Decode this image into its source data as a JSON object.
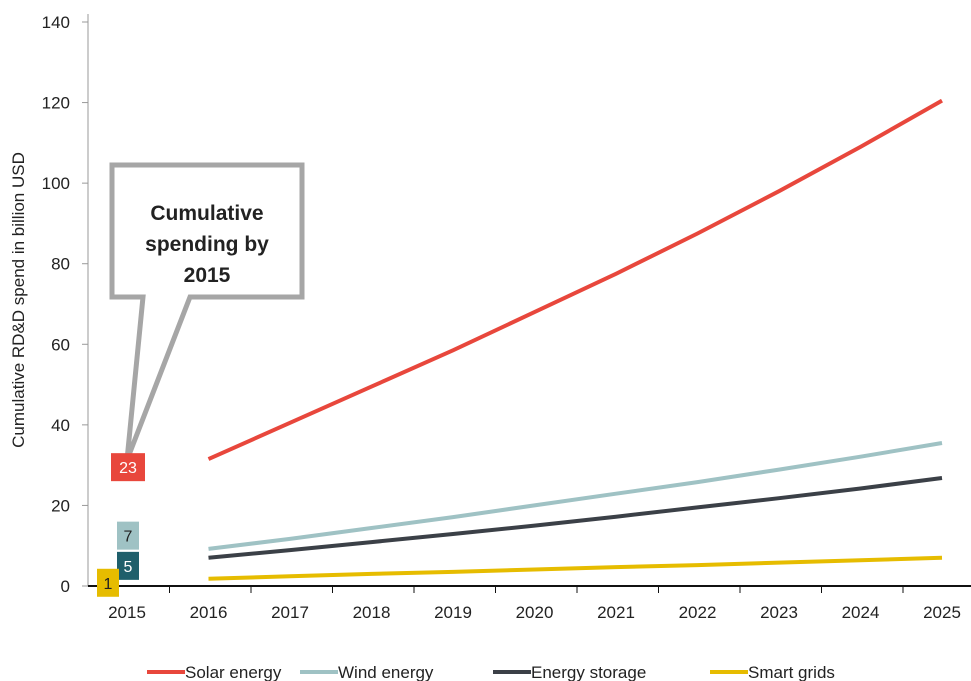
{
  "chart_data": {
    "type": "line",
    "ylabel": "Cumulative RD&D spend in billion USD",
    "xlabel": "",
    "ylim": [
      0,
      140
    ],
    "y_ticks": [
      "0",
      "20",
      "40",
      "60",
      "80",
      "100",
      "120",
      "140"
    ],
    "x_ticks": [
      "2015",
      "2016",
      "2017",
      "2018",
      "2019",
      "2020",
      "2021",
      "2022",
      "2023",
      "2024",
      "2025"
    ],
    "grid": false,
    "legend_position": "bottom",
    "series": [
      {
        "name": "Solar energy",
        "color": "#e8473c",
        "x": [
          2016,
          2017,
          2018,
          2019,
          2020,
          2021,
          2022,
          2023,
          2024,
          2025
        ],
        "values": [
          31.5,
          40.5,
          49.5,
          58.5,
          68,
          77.5,
          87.5,
          98,
          109,
          120.5
        ]
      },
      {
        "name": "Wind energy",
        "color": "#9fc2c4",
        "x": [
          2016,
          2017,
          2018,
          2019,
          2020,
          2021,
          2022,
          2023,
          2024,
          2025
        ],
        "values": [
          9.2,
          11.7,
          14.4,
          17.1,
          20,
          22.9,
          25.8,
          28.9,
          32.1,
          35.5
        ]
      },
      {
        "name": "Energy storage",
        "color": "#3b4047",
        "x": [
          2016,
          2017,
          2018,
          2019,
          2020,
          2021,
          2022,
          2023,
          2024,
          2025
        ],
        "values": [
          7,
          8.9,
          10.9,
          12.9,
          15,
          17.2,
          19.5,
          21.8,
          24.2,
          26.8
        ]
      },
      {
        "name": "Smart grids",
        "color": "#e6bc00",
        "x": [
          2016,
          2017,
          2018,
          2019,
          2020,
          2021,
          2022,
          2023,
          2024,
          2025
        ],
        "values": [
          1.8,
          2.4,
          3,
          3.5,
          4.1,
          4.7,
          5.2,
          5.8,
          6.4,
          7
        ]
      }
    ],
    "badges_2015": [
      {
        "series": "Solar energy",
        "label": "23",
        "value": 29.5,
        "bg": "#e8473c",
        "text_color": "#ffffff"
      },
      {
        "series": "Wind energy",
        "label": "7",
        "value": 12.5,
        "bg": "#9fc2c4",
        "text_color": "#222222"
      },
      {
        "series": "Energy storage",
        "label": "5",
        "value": 5,
        "bg": "#1f5f6b",
        "text_color": "#ffffff"
      },
      {
        "series": "Smart grids",
        "label": "1",
        "value": 0.8,
        "bg": "#e6bc00",
        "text_color": "#222222"
      }
    ],
    "annotation": {
      "lines": [
        "Cumulative",
        "spending by",
        "2015"
      ]
    }
  }
}
